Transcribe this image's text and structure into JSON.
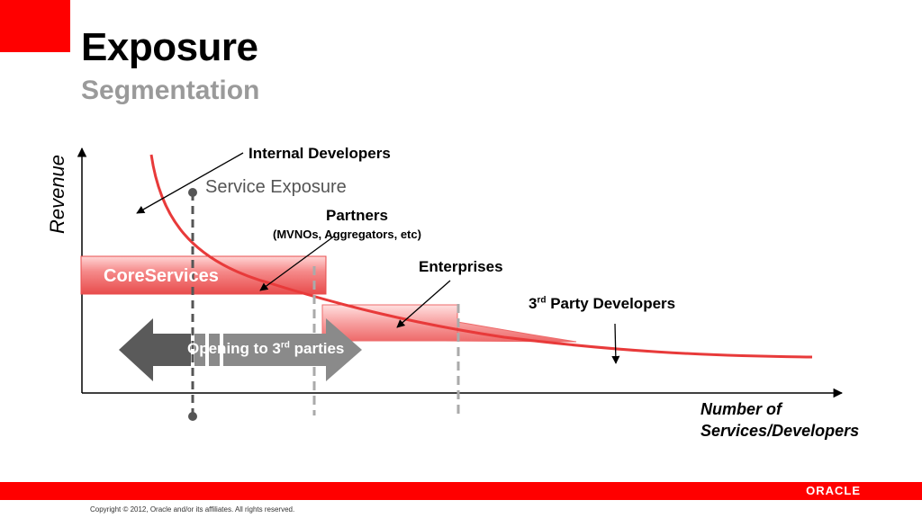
{
  "slide": {
    "title": "Exposure",
    "subtitle": "Segmentation"
  },
  "diagram": {
    "y_axis_label": "Revenue",
    "x_axis_label_line1": "Number of",
    "x_axis_label_line2": "Services/Developers",
    "service_exposure": "Service Exposure",
    "core_services": "CoreServices",
    "opening": {
      "before": "Opening to 3",
      "superscript": "rd",
      "after": " parties"
    },
    "callouts": {
      "internal": "Internal Developers",
      "partners": "Partners",
      "partners_sub": "(MVNOs, Aggregators, etc)",
      "enterprises": "Enterprises",
      "third_party_prefix": "3",
      "third_party_sup": "rd",
      "third_party_suffix": " Party Developers"
    }
  },
  "footer": {
    "copyright": "Copyright © 2012, Oracle and/or its affiliates. All rights reserved.",
    "logo": "ORACLE"
  },
  "colors": {
    "brand_red": "#ff0000",
    "curve_red": "#e83a3a",
    "band_pink": "#f47b7b",
    "arrow_gray": "#5a5a5a"
  }
}
